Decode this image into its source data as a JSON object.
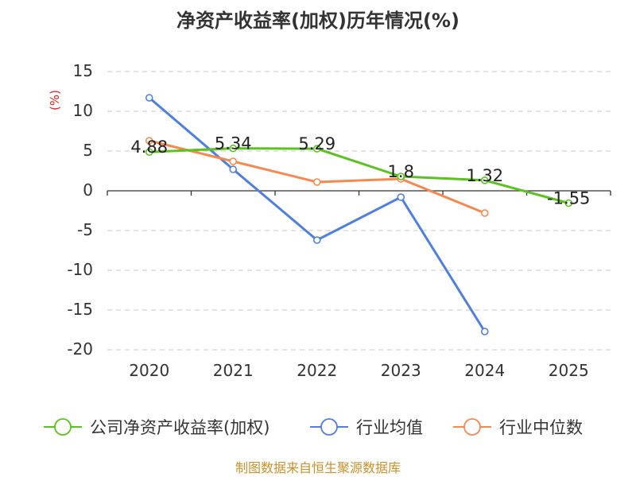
{
  "chart_data": {
    "type": "line",
    "title": "净资产收益率(加权)历年情况(%)",
    "ylabel": "(%)",
    "categories": [
      "2020",
      "2021",
      "2022",
      "2023",
      "2024",
      "2025"
    ],
    "ylim": [
      -20,
      15
    ],
    "yticks": [
      15,
      10,
      5,
      0,
      -5,
      -10,
      -15,
      -20
    ],
    "ytick_labels": [
      "15",
      "10",
      "5",
      "0",
      "-5",
      "-10",
      "-15",
      "-20"
    ],
    "series": [
      {
        "name": "公司净资产收益率(加权)",
        "color": "#5bc31f",
        "values": [
          4.88,
          5.34,
          5.29,
          1.8,
          1.32,
          -1.55
        ],
        "labels": [
          "4.88",
          "5.34",
          "5.29",
          "1.8",
          "1.32",
          "-1.55"
        ]
      },
      {
        "name": "行业均值",
        "color": "#4e7fe1",
        "values": [
          11.7,
          2.7,
          -6.2,
          -0.8,
          -17.7,
          null
        ]
      },
      {
        "name": "行业中位数",
        "color": "#f5894e",
        "values": [
          6.3,
          3.7,
          1.1,
          1.5,
          -2.8,
          null
        ]
      }
    ]
  },
  "colors": {
    "title": "#333333",
    "ylabel": "#e02020",
    "tick": "#333333",
    "grid": "#c8c8c8",
    "axis": "#333333",
    "source": "#c8912a"
  },
  "source_text": "制图数据来自恒生聚源数据库"
}
